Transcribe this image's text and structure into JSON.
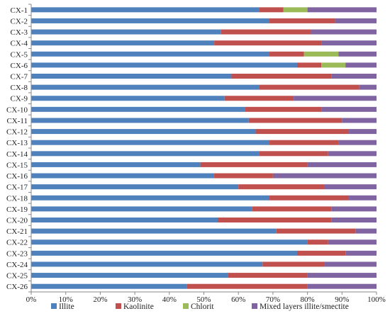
{
  "chart_data": {
    "type": "bar",
    "orientation": "horizontal",
    "stacked": true,
    "normalized_percent": true,
    "title": "",
    "xlabel": "",
    "ylabel": "",
    "xlim": [
      0,
      100
    ],
    "x_ticks": [
      "0%",
      "10%",
      "20%",
      "30%",
      "40%",
      "50%",
      "60%",
      "70%",
      "80%",
      "90%",
      "100%"
    ],
    "grid": false,
    "legend_position": "bottom",
    "categories": [
      "CX-1",
      "CX-2",
      "CX-3",
      "CX-4",
      "CX-5",
      "CX-6",
      "CX-7",
      "CX-8",
      "CX-9",
      "CX-10",
      "CX-11",
      "CX-12",
      "CX-13",
      "CX-14",
      "CX-15",
      "CX-16",
      "CX-17",
      "CX-18",
      "CX-19",
      "CX-20",
      "CX-21",
      "CX-22",
      "CX-23",
      "CX-24",
      "CX-25",
      "CX-26"
    ],
    "series": [
      {
        "name": "Illite",
        "color": "#4f81bd",
        "values": [
          66,
          69,
          55,
          53,
          69,
          77,
          58,
          66,
          56,
          62,
          63,
          65,
          69,
          66,
          49,
          53,
          60,
          69,
          64,
          54,
          71,
          80,
          77,
          67,
          57,
          45
        ]
      },
      {
        "name": "Kaolinite",
        "color": "#c0504d",
        "values": [
          7,
          19,
          26,
          31,
          10,
          7,
          29,
          29,
          20,
          22,
          27,
          27,
          20,
          20,
          31,
          17,
          25,
          23,
          23,
          33,
          23,
          6,
          14,
          18,
          23,
          35
        ]
      },
      {
        "name": "Chlorit",
        "color": "#9bbb59",
        "values": [
          7,
          0,
          0,
          0,
          10,
          7,
          0,
          0,
          0,
          0,
          0,
          0,
          0,
          0,
          0,
          0,
          0,
          0,
          0,
          0,
          0,
          0,
          0,
          0,
          0,
          0
        ]
      },
      {
        "name": "Mixed layers illite/smectite",
        "color": "#8064a2",
        "values": [
          20,
          12,
          19,
          16,
          11,
          9,
          13,
          5,
          24,
          16,
          10,
          8,
          11,
          14,
          20,
          30,
          15,
          8,
          13,
          13,
          6,
          14,
          9,
          15,
          20,
          20
        ]
      }
    ]
  }
}
